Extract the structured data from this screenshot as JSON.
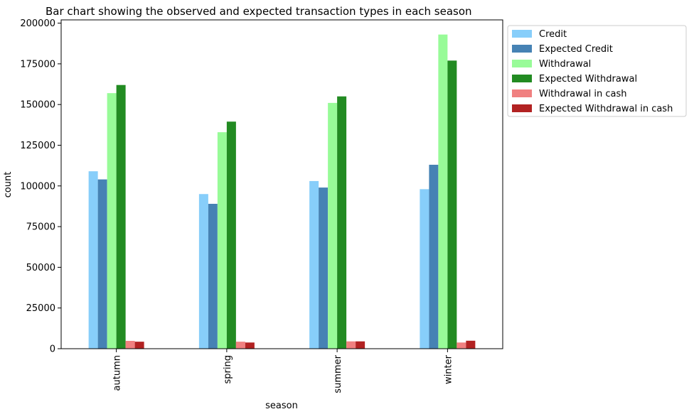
{
  "chart_data": {
    "type": "bar",
    "title": "Bar chart showing the observed and expected transaction types in each season",
    "xlabel": "season",
    "ylabel": "count",
    "categories": [
      "autumn",
      "spring",
      "summer",
      "winter"
    ],
    "ylim": [
      0,
      202000
    ],
    "yticks": [
      0,
      25000,
      50000,
      75000,
      100000,
      125000,
      150000,
      175000,
      200000
    ],
    "grid": false,
    "legend_position": "outside top-right",
    "series": [
      {
        "name": "Credit",
        "color": "#87cefa",
        "values": [
          109000,
          95000,
          103000,
          98000
        ]
      },
      {
        "name": "Expected Credit",
        "color": "#4682b4",
        "values": [
          104000,
          89000,
          99000,
          113000
        ]
      },
      {
        "name": "Withdrawal",
        "color": "#98fb98",
        "values": [
          157000,
          133000,
          151000,
          193000
        ]
      },
      {
        "name": "Expected Withdrawal",
        "color": "#228b22",
        "values": [
          162000,
          139500,
          155000,
          177000
        ]
      },
      {
        "name": "Withdrawal in cash",
        "color": "#f08080",
        "values": [
          4800,
          4300,
          4500,
          3800
        ]
      },
      {
        "name": "Expected Withdrawal in cash",
        "color": "#b22222",
        "values": [
          4300,
          3800,
          4500,
          4900
        ]
      }
    ]
  }
}
